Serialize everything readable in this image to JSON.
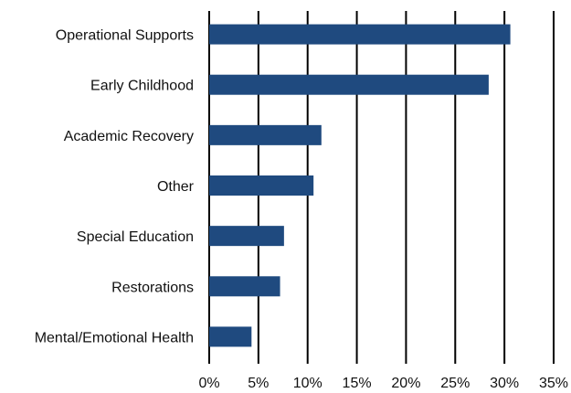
{
  "chart_data": {
    "type": "bar",
    "orientation": "horizontal",
    "categories": [
      "Operational Supports",
      "Early Childhood",
      "Academic Recovery",
      "Other",
      "Special Education",
      "Restorations",
      "Mental/Emotional Health"
    ],
    "values": [
      30.6,
      28.4,
      11.4,
      10.6,
      7.6,
      7.2,
      4.3
    ],
    "x_ticks": [
      "0%",
      "5%",
      "10%",
      "15%",
      "20%",
      "25%",
      "30%",
      "35%"
    ],
    "xlim": [
      0,
      35
    ],
    "grid": true,
    "legend": "none",
    "title": "",
    "xlabel": "",
    "ylabel": "",
    "bar_color": "#1f4a7f",
    "grid_color": "#000000"
  }
}
